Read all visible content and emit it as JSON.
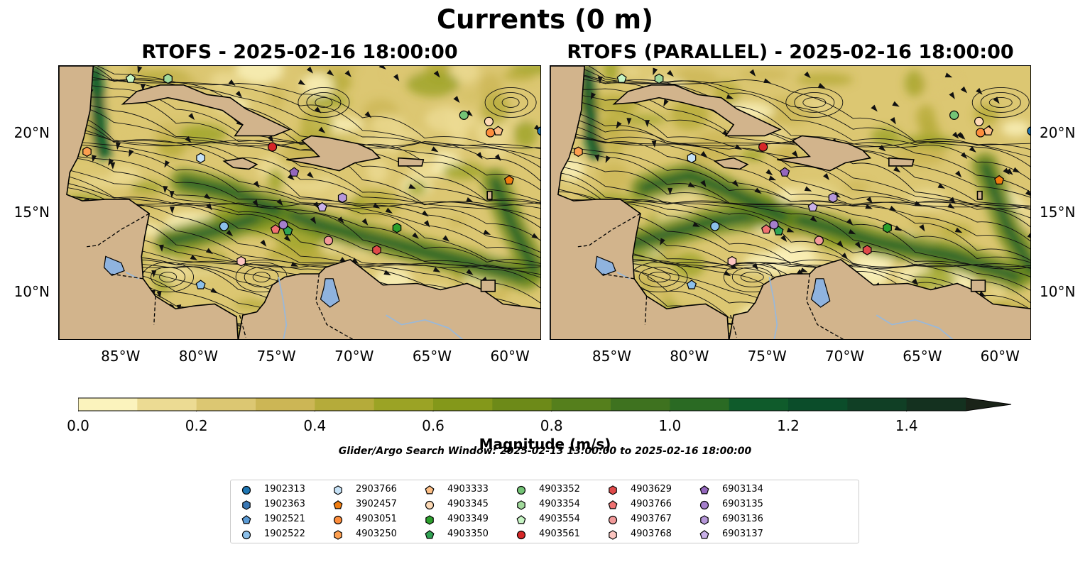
{
  "title": "Currents (0 m)",
  "panels": [
    {
      "id": "left",
      "title": "RTOFS - 2025-02-16 18:00:00"
    },
    {
      "id": "right",
      "title": "RTOFS (PARALLEL) - 2025-02-16 18:00:00"
    }
  ],
  "map": {
    "lon_range": [
      -89.0,
      -58.0
    ],
    "lat_range": [
      7.0,
      24.3
    ],
    "lon_ticks": [
      "85°W",
      "80°W",
      "75°W",
      "70°W",
      "65°W",
      "60°W"
    ],
    "lon_tick_values": [
      -85,
      -80,
      -75,
      -70,
      -65,
      -60
    ],
    "lat_ticks": [
      "10°N",
      "15°N",
      "20°N"
    ],
    "lat_tick_values": [
      10,
      15,
      20
    ]
  },
  "colors": {
    "land": "#d2b48c",
    "lake": "#8fb3de",
    "river": "#9ab8d8",
    "colorbar": [
      "#fbf3bd",
      "#ecdb93",
      "#dcc772",
      "#ccb655",
      "#b5ab3a",
      "#9ba325",
      "#84981a",
      "#6d8a18",
      "#557f1c",
      "#3e721f",
      "#2a6a23",
      "#0f5b2b",
      "#0b4d2a",
      "#103f25",
      "#14311f",
      "#1a2318"
    ]
  },
  "colorbar": {
    "title": "Magnitude (m/s)",
    "min": 0.0,
    "max": 1.5,
    "step": 0.1,
    "extend": "max",
    "tick_labels": [
      "0.0",
      "0.2",
      "0.4",
      "0.6",
      "0.8",
      "1.0",
      "1.2",
      "1.4"
    ],
    "tick_values": [
      0.0,
      0.2,
      0.4,
      0.6,
      0.8,
      1.0,
      1.2,
      1.4
    ]
  },
  "search_window": "Glider/Argo Search Window: 2025-02-13 13:00:00 to 2025-02-16 18:00:00",
  "platforms": [
    {
      "id": "1902313",
      "marker": "circle",
      "color": "#1f77b4",
      "lon": -58.0,
      "lat": 20.2
    },
    {
      "id": "1902363",
      "marker": "hexagon",
      "color": "#3a78b5",
      "lon": -58.6,
      "lat": 29.5,
      "offmap": true
    },
    {
      "id": "1902521",
      "marker": "pentagon",
      "color": "#5b9bd5",
      "lon": -60.0,
      "lat": 28.0,
      "offmap": true
    },
    {
      "id": "1902522",
      "marker": "circle",
      "color": "#8cc0ea",
      "lon": -78.4,
      "lat": 14.2
    },
    {
      "id": "2903766",
      "marker": "hexagon",
      "color": "#c6e2f7",
      "lon": -79.9,
      "lat": 18.5
    },
    {
      "id": "3902457",
      "marker": "pentagon",
      "color": "#f07d10",
      "lon": -60.1,
      "lat": 17.1
    },
    {
      "id": "4903051",
      "marker": "circle",
      "color": "#fd8d3c",
      "lon": -61.3,
      "lat": 20.1
    },
    {
      "id": "4903250",
      "marker": "hexagon",
      "color": "#fd9f4f",
      "lon": -87.2,
      "lat": 18.9
    },
    {
      "id": "4903333",
      "marker": "pentagon",
      "color": "#fdbf86",
      "lon": -60.8,
      "lat": 20.2
    },
    {
      "id": "4903345",
      "marker": "circle",
      "color": "#fdd9b5",
      "lon": -61.4,
      "lat": 20.8
    },
    {
      "id": "4903349",
      "marker": "hexagon",
      "color": "#2ca02c",
      "lon": -67.3,
      "lat": 14.1
    },
    {
      "id": "4903350",
      "marker": "pentagon",
      "color": "#31a354",
      "lon": -74.3,
      "lat": 13.9
    },
    {
      "id": "4903352",
      "marker": "circle",
      "color": "#74c476",
      "lon": -63.0,
      "lat": 21.2
    },
    {
      "id": "4903354",
      "marker": "hexagon",
      "color": "#a1d99b",
      "lon": -82.0,
      "lat": 23.5
    },
    {
      "id": "4903554",
      "marker": "pentagon",
      "color": "#c7f5c4",
      "lon": -84.4,
      "lat": 23.5
    },
    {
      "id": "4903561",
      "marker": "circle",
      "color": "#d62728",
      "lon": -75.3,
      "lat": 19.2
    },
    {
      "id": "4903629",
      "marker": "hexagon",
      "color": "#e04a4a",
      "lon": -68.6,
      "lat": 12.7
    },
    {
      "id": "4903766",
      "marker": "pentagon",
      "color": "#f07272",
      "lon": -75.1,
      "lat": 14.0
    },
    {
      "id": "4903767",
      "marker": "circle",
      "color": "#f29a9a",
      "lon": -71.7,
      "lat": 13.3
    },
    {
      "id": "4903768",
      "marker": "hexagon",
      "color": "#fcc5c0",
      "lon": -77.3,
      "lat": 12.0
    },
    {
      "id": "6903134",
      "marker": "pentagon",
      "color": "#9467bd",
      "lon": -73.9,
      "lat": 17.6
    },
    {
      "id": "6903135",
      "marker": "circle",
      "color": "#a57fcc",
      "lon": -74.6,
      "lat": 14.3
    },
    {
      "id": "6903136",
      "marker": "hexagon",
      "color": "#b697d9",
      "lon": -70.8,
      "lat": 16.0
    },
    {
      "id": "6903137",
      "marker": "pentagon",
      "color": "#c9b0e8",
      "lon": -72.1,
      "lat": 15.4
    },
    {
      "id": "extra-1",
      "marker": "pentagon",
      "color": "#8cc0ea",
      "lon": -79.9,
      "lat": 10.5
    }
  ]
}
